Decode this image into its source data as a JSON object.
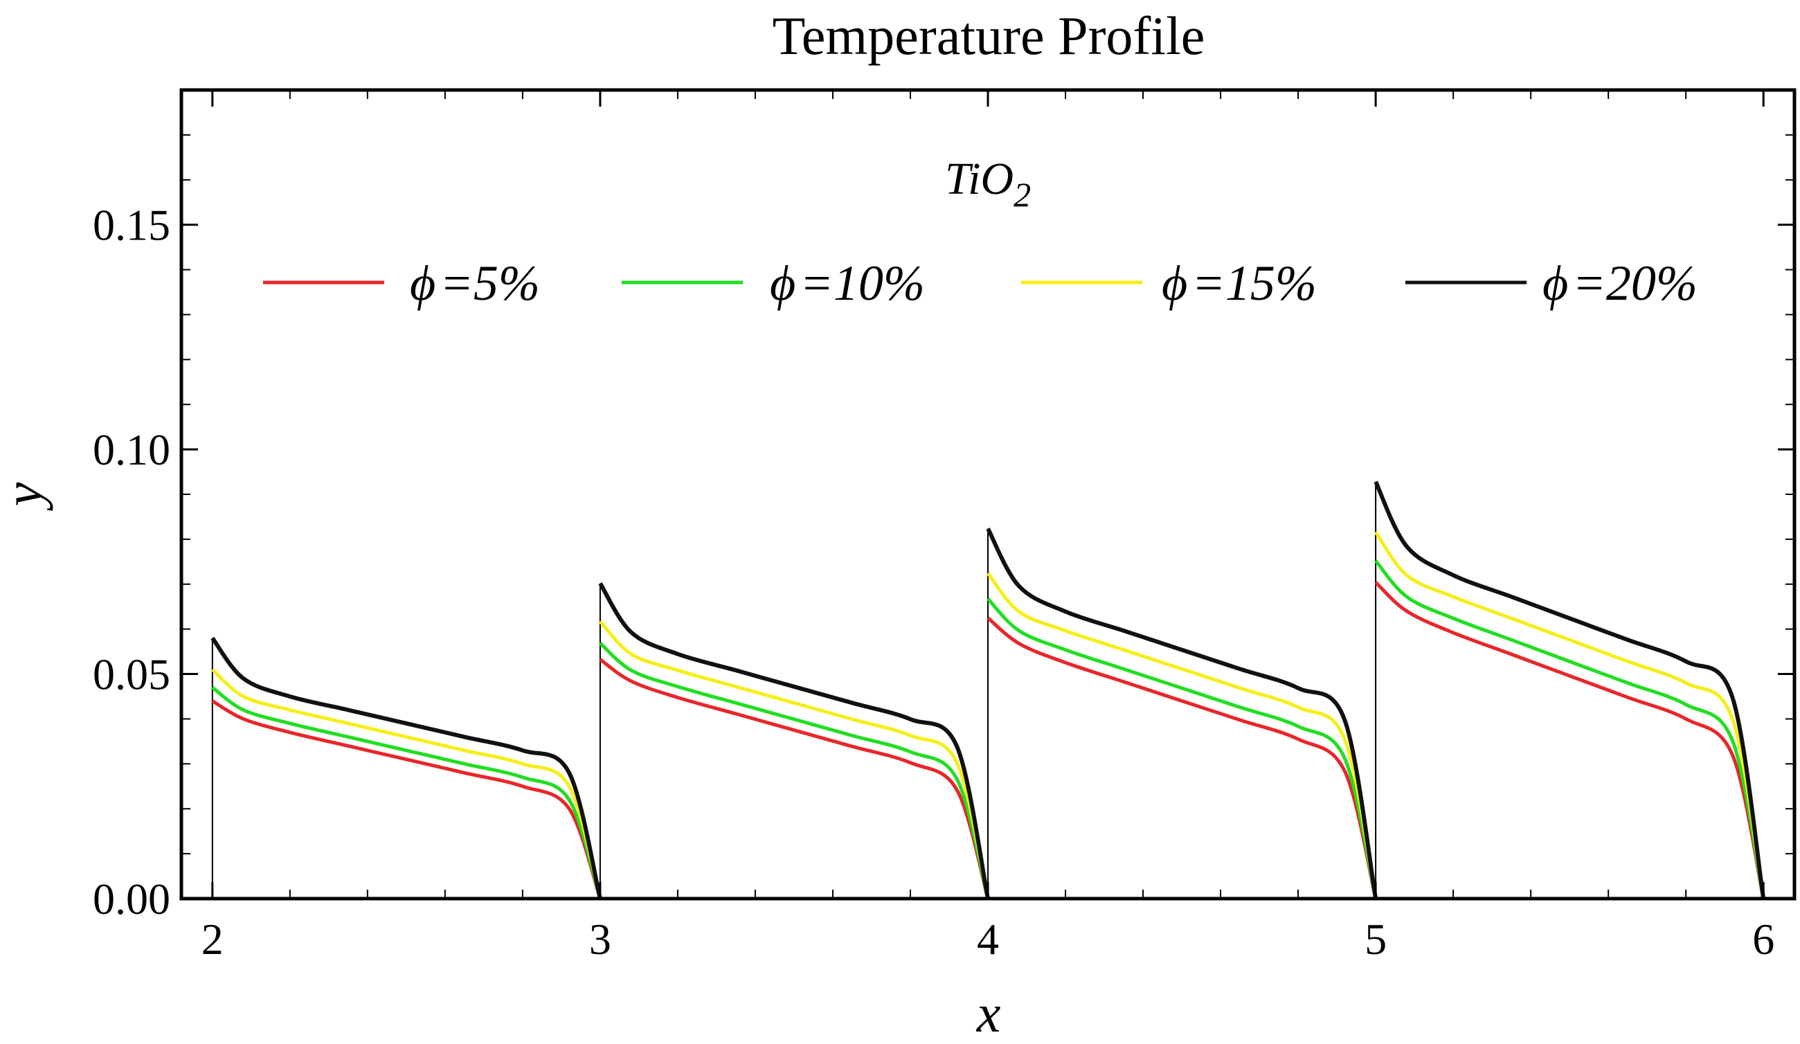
{
  "chart_data": {
    "type": "line",
    "title": "Temperature Profile",
    "xlabel": "x",
    "ylabel": "y",
    "xlim": [
      1.92,
      6.08
    ],
    "ylim": [
      0,
      0.18
    ],
    "x_ticks": [
      2,
      3,
      4,
      5,
      6
    ],
    "x_tick_labels": [
      "2",
      "3",
      "4",
      "5",
      "6"
    ],
    "y_ticks": [
      0,
      0.05,
      0.1,
      0.15
    ],
    "y_tick_labels": [
      "0.00",
      "0.05",
      "0.10",
      "0.15"
    ],
    "legend": {
      "title_main": "TiO",
      "title_sub": "2",
      "placement": "top-center"
    },
    "segments": [
      {
        "x_start": 2,
        "x_end": 3,
        "scale": 1.0
      },
      {
        "x_start": 3,
        "x_end": 4,
        "scale": 1.21
      },
      {
        "x_start": 4,
        "x_end": 5,
        "scale": 1.42
      },
      {
        "x_start": 5,
        "x_end": 6,
        "scale": 1.6
      }
    ],
    "series": [
      {
        "name": "ϕ=5%",
        "label_symbol": "ϕ",
        "label_value": "=5%",
        "color": "#e8262a",
        "peak": 0.044,
        "values": [
          0.044,
          0.04,
          0.037,
          0.034,
          0.031,
          0.028,
          0.025,
          0.02,
          0.0
        ]
      },
      {
        "name": "ϕ=10%",
        "label_symbol": "ϕ",
        "label_value": "=10%",
        "color": "#22dd22",
        "peak": 0.047,
        "values": [
          0.047,
          0.042,
          0.039,
          0.036,
          0.033,
          0.03,
          0.027,
          0.022,
          0.0
        ]
      },
      {
        "name": "ϕ=15%",
        "label_symbol": "ϕ",
        "label_value": "=15%",
        "color": "#f5ee1a",
        "peak": 0.051,
        "values": [
          0.051,
          0.045,
          0.042,
          0.039,
          0.036,
          0.033,
          0.03,
          0.025,
          0.0
        ]
      },
      {
        "name": "ϕ=20%",
        "label_symbol": "ϕ",
        "label_value": "=20%",
        "color": "#111111",
        "peak": 0.058,
        "values": [
          0.058,
          0.049,
          0.045,
          0.042,
          0.039,
          0.036,
          0.033,
          0.028,
          0.0
        ]
      }
    ],
    "segment_profile_x": [
      0.0,
      0.08,
      0.2,
      0.35,
      0.5,
      0.65,
      0.8,
      0.92,
      1.0
    ]
  }
}
